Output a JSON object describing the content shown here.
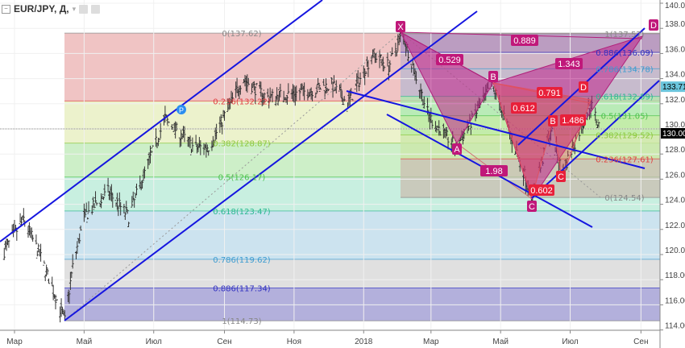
{
  "header": {
    "symbol": "EUR/JPY, Д,",
    "collapse_icon": "minus-box-icon",
    "dropdown_icon": "chevron-down-icon",
    "icons": [
      "eye-icon",
      "gear-icon"
    ]
  },
  "price_labels": {
    "last": "130.00",
    "marker": "133.71",
    "marker_color": "#6bc5dc",
    "last_color": "#000000"
  },
  "chart_data": {
    "type": "candlestick",
    "y_range": [
      114,
      140
    ],
    "y_ticks": [
      "114.00",
      "116.00",
      "118.00",
      "120.00",
      "122.00",
      "124.00",
      "126.00",
      "128.00",
      "130.00",
      "132.00",
      "134.00",
      "136.00",
      "138.00",
      "140.00"
    ],
    "x_ticks": [
      {
        "date": "2017-03-01",
        "label": "Мар"
      },
      {
        "date": "2017-05-01",
        "label": "Май"
      },
      {
        "date": "2017-07-01",
        "label": "Июл"
      },
      {
        "date": "2017-09-01",
        "label": "Сен"
      },
      {
        "date": "2017-11-01",
        "label": "Ноя"
      },
      {
        "date": "2018-01-01",
        "label": "2018"
      },
      {
        "date": "2018-03-01",
        "label": "Мар"
      },
      {
        "date": "2018-05-01",
        "label": "Май"
      },
      {
        "date": "2018-07-01",
        "label": "Июл"
      },
      {
        "date": "2018-09-01",
        "label": "Сен"
      }
    ],
    "price_path": [
      [
        "2017-02-18",
        120.0
      ],
      [
        "2017-03-09",
        122.8
      ],
      [
        "2017-03-23",
        120.0
      ],
      [
        "2017-04-14",
        114.73
      ],
      [
        "2017-04-21",
        119.0
      ],
      [
        "2017-05-01",
        123.0
      ],
      [
        "2017-05-22",
        125.0
      ],
      [
        "2017-06-09",
        123.0
      ],
      [
        "2017-06-25",
        127.0
      ],
      [
        "2017-07-11",
        130.8
      ],
      [
        "2017-08-05",
        128.5
      ],
      [
        "2017-08-19",
        128.6
      ],
      [
        "2017-09-17",
        134.0
      ],
      [
        "2017-10-08",
        132.5
      ],
      [
        "2017-11-13",
        133.0
      ],
      [
        "2017-12-04",
        133.5
      ],
      [
        "2017-12-18",
        132.0
      ],
      [
        "2018-01-09",
        136.0
      ],
      [
        "2018-01-23",
        135.0
      ],
      [
        "2018-02-04",
        137.62
      ],
      [
        "2018-02-27",
        131.0
      ],
      [
        "2018-03-23",
        128.5
      ],
      [
        "2018-04-24",
        133.5
      ],
      [
        "2018-05-29",
        124.54
      ],
      [
        "2018-06-14",
        130.0
      ],
      [
        "2018-06-24",
        126.5
      ],
      [
        "2018-07-19",
        132.0
      ],
      [
        "2018-07-27",
        130.0
      ]
    ],
    "fib_retracements": [
      {
        "levels": [
          {
            "ratio": "0",
            "value": 137.62,
            "label": "0(137.62)",
            "color": "#888888",
            "fill": "#f0c4c4"
          },
          {
            "ratio": "0.236",
            "value": 132.22,
            "label": "0.236(132.22)",
            "color": "#e04040",
            "fill": "#ecf2cc"
          },
          {
            "ratio": "0.382",
            "value": 128.87,
            "label": "0.382(128.87)",
            "color": "#8cc83c",
            "fill": "#cdefc8"
          },
          {
            "ratio": "0.5",
            "value": 126.17,
            "label": "0.5(126.17)",
            "color": "#4cc24c",
            "fill": "#c8efe0"
          },
          {
            "ratio": "0.618",
            "value": 123.47,
            "label": "0.618(123.47)",
            "color": "#2db892",
            "fill": "#cce3ef"
          },
          {
            "ratio": "0.786",
            "value": 119.62,
            "label": "0.786(119.62)",
            "color": "#3e9cd0",
            "fill": "#e0e0e0"
          },
          {
            "ratio": "0.886",
            "value": 117.34,
            "label": "0.886(117.34)",
            "color": "#3030c0",
            "fill": "#b3b0dc"
          },
          {
            "ratio": "1",
            "value": 114.73,
            "label": "1(114.73)",
            "color": "#888888",
            "fill": ""
          }
        ]
      },
      {
        "levels": [
          {
            "ratio": "1",
            "value": 137.57,
            "label": "1(137.57)",
            "color": "#888888",
            "fill": "#a990c0"
          },
          {
            "ratio": "0.886",
            "value": 136.09,
            "label": "0.886(136.09)",
            "color": "#3030c0",
            "fill": "#c5b0c8"
          },
          {
            "ratio": "0.786",
            "value": 134.78,
            "label": "0.786(134.78)",
            "color": "#3e9cd0",
            "fill": "#b9b8d0"
          },
          {
            "ratio": "0.618",
            "value": 132.59,
            "label": "0.618(132.59)",
            "color": "#2db892",
            "fill": "#a8e8b0"
          },
          {
            "ratio": "0.5",
            "value": 131.05,
            "label": "0.5(131.05)",
            "color": "#4cc24c",
            "fill": "#b5ea9f"
          },
          {
            "ratio": "0.382",
            "value": 129.52,
            "label": "0.382(129.52)",
            "color": "#8cc83c",
            "fill": "#cbe7a8"
          },
          {
            "ratio": "0.236",
            "value": 127.61,
            "label": "0.236(127.61)",
            "color": "#e04040",
            "fill": "#c9bdb0"
          },
          {
            "ratio": "0",
            "value": 124.54,
            "label": "0(124.54)",
            "color": "#888888",
            "fill": ""
          }
        ]
      }
    ],
    "pattern_points": [
      "X",
      "A",
      "B",
      "C",
      "D"
    ],
    "pattern2_points": [
      "B",
      "C",
      "D"
    ],
    "pattern_ratios": [
      "0.889",
      "0.529",
      "1.343",
      "1.98"
    ],
    "pattern2_ratios": [
      "0.791",
      "0.612",
      "1.486",
      "0.602"
    ],
    "pivot_marker": "P",
    "current_price": 130.0,
    "marker_price": 133.71
  }
}
